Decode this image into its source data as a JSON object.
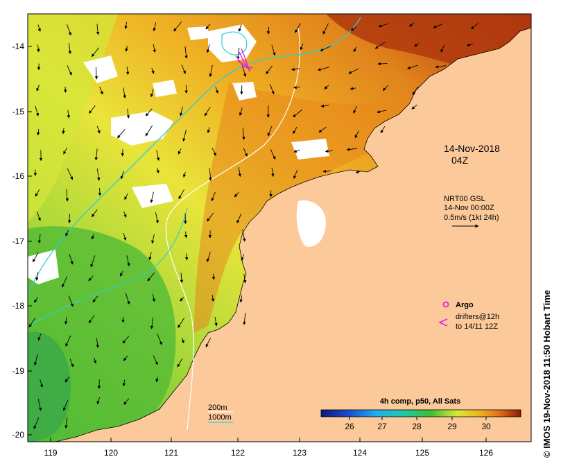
{
  "map": {
    "lon_ticks": [
      "119",
      "120",
      "121",
      "122",
      "123",
      "124",
      "125",
      "126"
    ],
    "lat_ticks": [
      "-14",
      "-15",
      "-16",
      "-17",
      "-18",
      "-19",
      "-20"
    ]
  },
  "annotations": {
    "date": "14-Nov-2018",
    "time": "04Z",
    "currents_line1": "NRT00 GSL",
    "currents_line2": "14-Nov 00:00Z",
    "currents_line3": "0.5m/s (1kt 24h)",
    "argo_label": "Argo",
    "drifters_line1": "drifters@12h",
    "drifters_line2": "to 14/11 12Z",
    "depth_200": "200m",
    "depth_1000": "1000m"
  },
  "colorbar": {
    "title": "4h comp, p50, All Sats",
    "ticks": [
      "26",
      "27",
      "28",
      "29",
      "30"
    ]
  },
  "credit": "© IMOS 19-Nov-2018 11:50 Hobart Time",
  "colors": {
    "land": "#fcc99a",
    "warm": "#b83a10",
    "mid": "#e8961e",
    "cool": "#d8e83c",
    "cold": "#4cb830",
    "isobath_200": "#ffffff",
    "isobath_1000": "#2ad0d0",
    "argo": "#e020e0"
  }
}
